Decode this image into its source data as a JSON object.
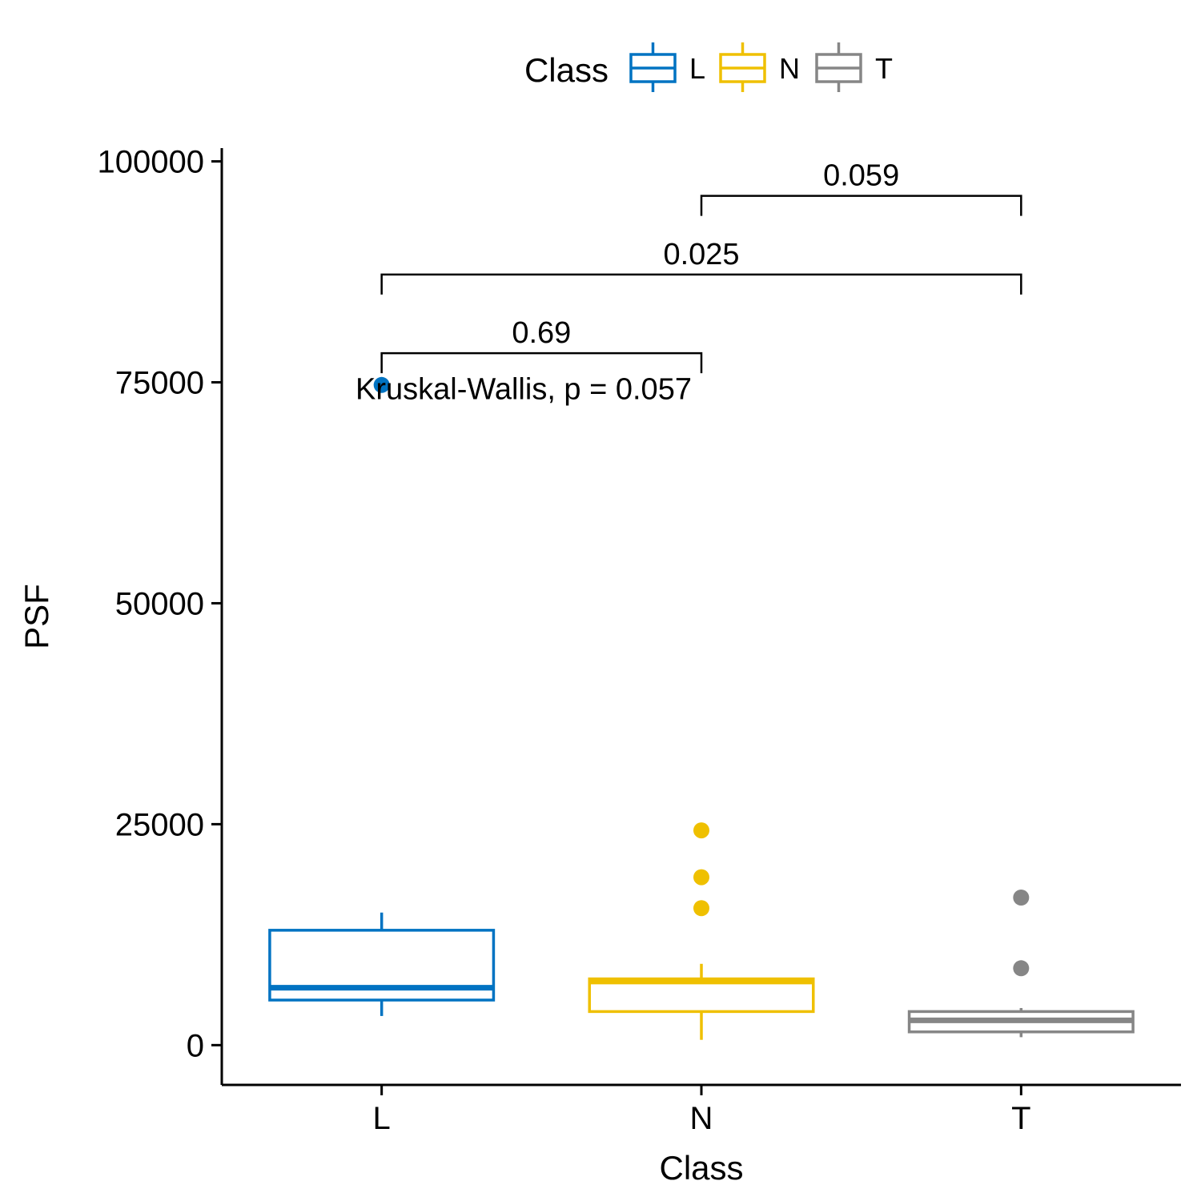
{
  "chart_data": {
    "type": "box",
    "xlabel": "Class",
    "ylabel": "PSF",
    "ylim": [
      -4500,
      101500
    ],
    "yticks": [
      0,
      25000,
      50000,
      75000,
      100000
    ],
    "categories": [
      "L",
      "N",
      "T"
    ],
    "legend": {
      "title": "Class",
      "placement": "top",
      "entries": [
        {
          "label": "L",
          "color": "#0073C2"
        },
        {
          "label": "N",
          "color": "#EFC000"
        },
        {
          "label": "T",
          "color": "#868686"
        }
      ]
    },
    "series": [
      {
        "name": "L",
        "color": "#0073C2",
        "whisker_low": 3300,
        "q1": 5100,
        "median": 6500,
        "q3": 13000,
        "whisker_high": 15000,
        "outliers": [
          74700
        ]
      },
      {
        "name": "N",
        "color": "#EFC000",
        "whisker_low": 600,
        "q1": 3800,
        "median": 7200,
        "q3": 7500,
        "whisker_high": 9200,
        "outliers": [
          15500,
          19000,
          24300
        ]
      },
      {
        "name": "T",
        "color": "#868686",
        "whisker_low": 900,
        "q1": 1500,
        "median": 2800,
        "q3": 3800,
        "whisker_high": 4200,
        "outliers": [
          8700,
          16700
        ]
      }
    ],
    "comparisons": [
      {
        "from": "L",
        "to": "N",
        "label": "0.69",
        "y": 78300
      },
      {
        "from": "L",
        "to": "T",
        "label": "0.025",
        "y": 87200
      },
      {
        "from": "N",
        "to": "T",
        "label": "0.059",
        "y": 96100
      }
    ],
    "overall_test": {
      "label": "Kruskal-Wallis, p = 0.057",
      "x_category": "N",
      "y": 74200
    },
    "grid": false
  }
}
